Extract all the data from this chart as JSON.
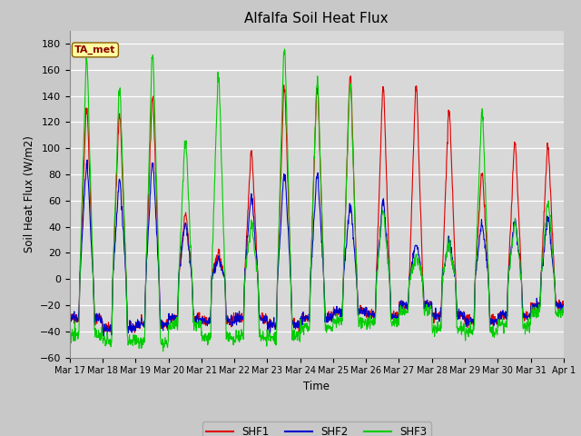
{
  "title": "Alfalfa Soil Heat Flux",
  "ylabel": "Soil Heat Flux (W/m2)",
  "xlabel": "Time",
  "annotation": "TA_met",
  "ylim": [
    -60,
    190
  ],
  "yticks": [
    -60,
    -40,
    -20,
    0,
    20,
    40,
    60,
    80,
    100,
    120,
    140,
    160,
    180
  ],
  "legend_labels": [
    "SHF1",
    "SHF2",
    "SHF3"
  ],
  "colors": {
    "SHF1": "#dd0000",
    "SHF2": "#0000cc",
    "SHF3": "#00cc00"
  },
  "plot_bg_color": "#d8d8d8",
  "fig_bg_color": "#c8c8c8",
  "n_days": 15,
  "points_per_day": 96,
  "daily_peaks_SHF1": [
    130,
    125,
    138,
    50,
    20,
    97,
    145,
    145,
    153,
    144,
    145,
    127,
    80,
    103,
    100
  ],
  "daily_peaks_SHF2": [
    86,
    75,
    88,
    43,
    15,
    63,
    80,
    79,
    56,
    59,
    27,
    28,
    42,
    43,
    45
  ],
  "daily_peaks_SHF3": [
    165,
    145,
    170,
    104,
    153,
    40,
    175,
    150,
    147,
    52,
    17,
    26,
    126,
    42,
    60
  ],
  "daily_night_SHF1": [
    -30,
    -38,
    -35,
    -30,
    -32,
    -30,
    -35,
    -30,
    -25,
    -28,
    -20,
    -28,
    -32,
    -28,
    -20
  ],
  "daily_night_SHF2": [
    -30,
    -38,
    -35,
    -30,
    -32,
    -30,
    -35,
    -30,
    -25,
    -28,
    -20,
    -28,
    -32,
    -28,
    -20
  ],
  "daily_night_SHF3": [
    -42,
    -47,
    -48,
    -35,
    -45,
    -44,
    -44,
    -37,
    -32,
    -33,
    -24,
    -38,
    -40,
    -35,
    -25
  ],
  "x_tick_labels": [
    "Mar 17",
    "Mar 18",
    "Mar 19",
    "Mar 20",
    "Mar 21",
    "Mar 22",
    "Mar 23",
    "Mar 24",
    "Mar 25",
    "Mar 26",
    "Mar 27",
    "Mar 28",
    "Mar 29",
    "Mar 30",
    "Mar 31",
    "Apr 1"
  ]
}
